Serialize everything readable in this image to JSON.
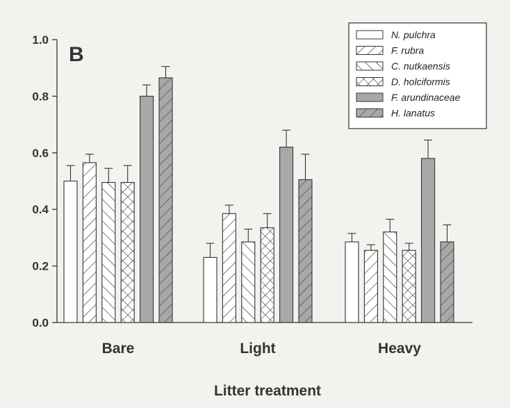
{
  "chart_data": {
    "type": "bar",
    "panel_label": "B",
    "xlabel": "Litter treatment",
    "ylabel": "",
    "ylim": [
      0,
      1.0
    ],
    "yticks": [
      "0.0",
      "0.2",
      "0.4",
      "0.6",
      "0.8",
      "1.0"
    ],
    "categories": [
      "Bare",
      "Light",
      "Heavy"
    ],
    "legend_position": "top-right",
    "series": [
      {
        "name": "N. pulchra",
        "pattern": "open",
        "fill": "#ffffff",
        "values": [
          0.5,
          0.23,
          0.285
        ],
        "errors": [
          0.055,
          0.05,
          0.03
        ]
      },
      {
        "name": "F. rubra",
        "pattern": "forward-diagonal",
        "fill": "#ffffff",
        "values": [
          0.565,
          0.385,
          0.255
        ],
        "errors": [
          0.03,
          0.03,
          0.02
        ]
      },
      {
        "name": "C. nutkaensis",
        "pattern": "back-diagonal",
        "fill": "#ffffff",
        "values": [
          0.495,
          0.285,
          0.32
        ],
        "errors": [
          0.05,
          0.045,
          0.045
        ]
      },
      {
        "name": "D. holciformis",
        "pattern": "crosshatch",
        "fill": "#ffffff",
        "values": [
          0.495,
          0.335,
          0.255
        ],
        "errors": [
          0.06,
          0.05,
          0.025
        ]
      },
      {
        "name": "F. arundinaceae",
        "pattern": "solid-gray",
        "fill": "#a8a8a8",
        "values": [
          0.8,
          0.62,
          0.58
        ],
        "errors": [
          0.04,
          0.06,
          0.065
        ]
      },
      {
        "name": "H. lanatus",
        "pattern": "gray-diagonal",
        "fill": "#a8a8a8",
        "values": [
          0.865,
          0.505,
          0.285
        ],
        "errors": [
          0.04,
          0.09,
          0.06
        ]
      }
    ]
  }
}
